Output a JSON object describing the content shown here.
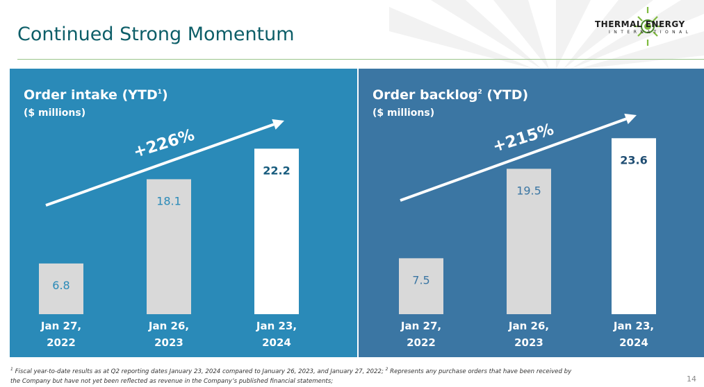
{
  "slide": {
    "title": "Continued Strong Momentum",
    "page_number": "14",
    "logo": {
      "line1": "THERMAL ENERGY",
      "line2": "INTERNATIONAL"
    },
    "footnote": {
      "marker1": "1",
      "text1": "Fiscal year-to-date results as at Q2 reporting dates January 23, 2024 compared to January 26, 2023, and January 27, 2022;",
      "marker2": "2",
      "text2": "Represents any purchase orders that have been received by",
      "text3": "the Company but have not yet been reflected as revenue in the Company’s published financial statements;"
    }
  },
  "chart_data": [
    {
      "type": "bar",
      "title": "Order intake (YTD",
      "title_sup": "1",
      "title_end": ")",
      "subtitle": "($ millions)",
      "categories": [
        [
          "Jan 27,",
          "2022"
        ],
        [
          "Jan 26,",
          "2023"
        ],
        [
          "Jan 23,",
          "2024"
        ]
      ],
      "values": [
        6.8,
        18.1,
        22.2
      ],
      "labels": [
        "6.8",
        "18.1",
        "22.2"
      ],
      "annotation": "+226%",
      "ylim": [
        0,
        24
      ],
      "colors": {
        "bar": "#d9d9d9",
        "bar_highlight": "#ffffff",
        "label": "#2a8ab8",
        "label_highlight": "#175b7d"
      }
    },
    {
      "type": "bar",
      "title": "Order backlog",
      "title_sup": "2",
      "title_end": " (YTD)",
      "subtitle": "($ millions)",
      "categories": [
        [
          "Jan 27,",
          "2022"
        ],
        [
          "Jan 26,",
          "2023"
        ],
        [
          "Jan 23,",
          "2024"
        ]
      ],
      "values": [
        7.5,
        19.5,
        23.6
      ],
      "labels": [
        "7.5",
        "19.5",
        "23.6"
      ],
      "annotation": "+215%",
      "ylim": [
        0,
        24
      ],
      "colors": {
        "bar": "#d9d9d9",
        "bar_highlight": "#ffffff",
        "label": "#3b76a3",
        "label_highlight": "#1f4d72"
      }
    }
  ]
}
